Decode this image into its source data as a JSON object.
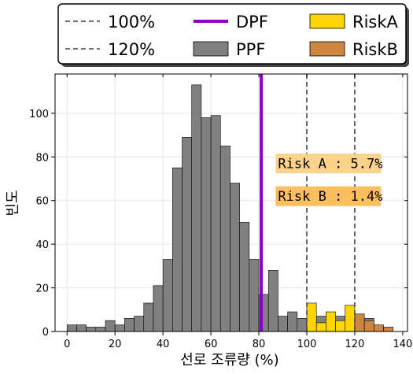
{
  "chart_data": {
    "type": "bar",
    "xlabel": "선로 조류량 (%)",
    "ylabel": "빈도",
    "xlim": [
      -5,
      142
    ],
    "ylim": [
      0,
      118
    ],
    "xticks": [
      0,
      20,
      40,
      60,
      80,
      100,
      120,
      140
    ],
    "yticks": [
      0,
      20,
      40,
      60,
      80,
      100
    ],
    "grid": true,
    "legend_position": "top",
    "bin_width": 4,
    "series": [
      {
        "name": "PPF",
        "color": "#808080",
        "bins": [
          {
            "x": 0,
            "y": 3
          },
          {
            "x": 4,
            "y": 3
          },
          {
            "x": 8,
            "y": 2
          },
          {
            "x": 12,
            "y": 2
          },
          {
            "x": 16,
            "y": 5
          },
          {
            "x": 20,
            "y": 3
          },
          {
            "x": 24,
            "y": 6
          },
          {
            "x": 28,
            "y": 7
          },
          {
            "x": 32,
            "y": 13
          },
          {
            "x": 36,
            "y": 21
          },
          {
            "x": 40,
            "y": 33
          },
          {
            "x": 44,
            "y": 75
          },
          {
            "x": 48,
            "y": 89
          },
          {
            "x": 52,
            "y": 113
          },
          {
            "x": 56,
            "y": 98
          },
          {
            "x": 60,
            "y": 99
          },
          {
            "x": 64,
            "y": 85
          },
          {
            "x": 68,
            "y": 68
          },
          {
            "x": 72,
            "y": 50
          },
          {
            "x": 76,
            "y": 33
          },
          {
            "x": 80,
            "y": 17
          },
          {
            "x": 84,
            "y": 28
          },
          {
            "x": 88,
            "y": 7
          },
          {
            "x": 92,
            "y": 9
          },
          {
            "x": 96,
            "y": 6
          },
          {
            "x": 100,
            "y": 5
          },
          {
            "x": 104,
            "y": 7
          },
          {
            "x": 108,
            "y": 4
          },
          {
            "x": 112,
            "y": 7
          },
          {
            "x": 116,
            "y": 5
          },
          {
            "x": 120,
            "y": 5
          },
          {
            "x": 124,
            "y": 6
          },
          {
            "x": 128,
            "y": 2
          }
        ]
      },
      {
        "name": "RiskA",
        "color": "#ffd700",
        "bins": [
          {
            "x": 100,
            "y": 13
          },
          {
            "x": 104,
            "y": 4
          },
          {
            "x": 108,
            "y": 9
          },
          {
            "x": 112,
            "y": 5
          },
          {
            "x": 116,
            "y": 12
          },
          {
            "x": 120,
            "y": 5
          }
        ]
      },
      {
        "name": "RiskB",
        "color": "#cd853f",
        "bins": [
          {
            "x": 120,
            "y": 8
          },
          {
            "x": 124,
            "y": 5
          },
          {
            "x": 128,
            "y": 3
          },
          {
            "x": 132,
            "y": 2
          }
        ]
      }
    ],
    "lines": [
      {
        "name": "100%",
        "x": 100,
        "style": "dashed",
        "color": "#444444"
      },
      {
        "name": "120%",
        "x": 120,
        "style": "dashed",
        "color": "#444444"
      },
      {
        "name": "DPF",
        "x": 81,
        "style": "solid",
        "color": "#8b00c9"
      }
    ],
    "annotations": [
      {
        "text": "Risk A : 5.7%",
        "x": 88,
        "y": 77,
        "bg": "#fcd38a"
      },
      {
        "text": "Risk B : 1.4%",
        "x": 88,
        "y": 62,
        "bg": "#fbbf60"
      }
    ],
    "legend": [
      {
        "label": "100%",
        "type": "dashed-line",
        "color": "#444444"
      },
      {
        "label": "DPF",
        "type": "solid-line",
        "color": "#8b00c9"
      },
      {
        "label": "RiskA",
        "type": "patch",
        "color": "#ffd700"
      },
      {
        "label": "120%",
        "type": "dashed-line",
        "color": "#444444"
      },
      {
        "label": "PPF",
        "type": "patch",
        "color": "#808080"
      },
      {
        "label": "RiskB",
        "type": "patch",
        "color": "#cd853f"
      }
    ]
  }
}
